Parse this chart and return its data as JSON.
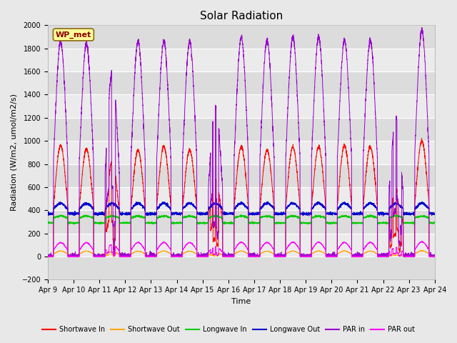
{
  "title": "Solar Radiation",
  "xlabel": "Time",
  "ylabel": "Radiation (W/m2, umol/m2/s)",
  "ylim": [
    -200,
    2000
  ],
  "yticks": [
    -200,
    0,
    200,
    400,
    600,
    800,
    1000,
    1200,
    1400,
    1600,
    1800,
    2000
  ],
  "xlim": [
    9,
    24
  ],
  "xtick_days": [
    9,
    10,
    11,
    12,
    13,
    14,
    15,
    16,
    17,
    18,
    19,
    20,
    21,
    22,
    23,
    24
  ],
  "legend_entries": [
    "Shortwave In",
    "Shortwave Out",
    "Longwave In",
    "Longwave Out",
    "PAR in",
    "PAR out"
  ],
  "line_colors": [
    "#ff0000",
    "#ffa500",
    "#00cc00",
    "#0000cc",
    "#9900cc",
    "#ff00ff"
  ],
  "annotation_text": "WP_met",
  "annotation_bg": "#ffff99",
  "annotation_border": "#8b6914",
  "fig_bg": "#e8e8e8",
  "axes_bg": "#e8e8e8",
  "band_colors": [
    "#dcdcdc",
    "#ebebeb"
  ],
  "grid_color": "#ffffff",
  "title_fontsize": 11,
  "tick_fontsize": 7,
  "ylabel_fontsize": 8,
  "xlabel_fontsize": 8,
  "legend_fontsize": 7,
  "n_days": 15,
  "n_per_day": 288,
  "x_start": 9,
  "sw_peaks": [
    960,
    930,
    820,
    920,
    950,
    920,
    660,
    950,
    920,
    950,
    950,
    960,
    950,
    580,
    1000
  ],
  "par_peaks": [
    1860,
    1840,
    1600,
    1860,
    1860,
    1860,
    1300,
    1900,
    1870,
    1900,
    1900,
    1870,
    1870,
    1200,
    1960
  ],
  "cloudy_days": [
    2,
    6,
    13
  ]
}
